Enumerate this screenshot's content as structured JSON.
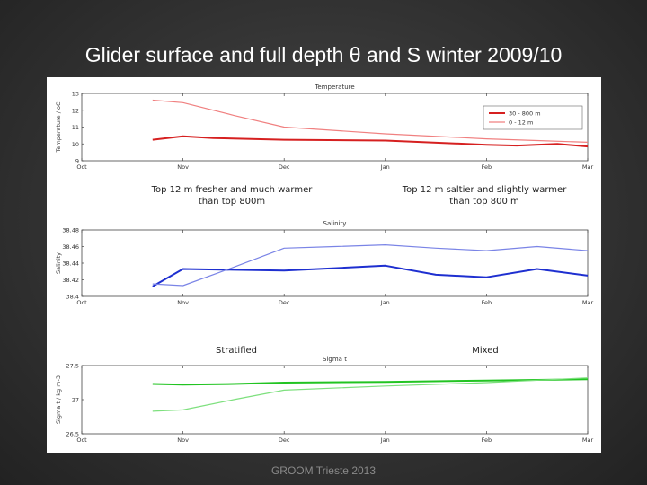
{
  "slide": {
    "title": "Glider surface and full depth θ and S winter 2009/10",
    "footer": "GROOM Trieste 2013"
  },
  "annotations": {
    "top_left": [
      "Top 12 m fresher and much warmer",
      "than top 800m"
    ],
    "top_right": [
      "Top 12 m saltier and slightly warmer",
      "than top 800 m"
    ],
    "mid_left": "Stratified",
    "mid_right": "Mixed"
  },
  "colors": {
    "red_deep": "#d62020",
    "red_surface": "#f08080",
    "blue_deep": "#1e2fd0",
    "blue_surface": "#7a84e6",
    "green_deep": "#22c422",
    "green_surface": "#7ee07e"
  },
  "chart_data": [
    {
      "type": "line",
      "title": "Temperature",
      "xlabel": "",
      "ylabel": "Temperature / oC",
      "x_ticks": [
        "Oct",
        "Nov",
        "Dec",
        "Jan",
        "Feb",
        "Mar"
      ],
      "xlim": [
        0,
        5
      ],
      "ylim": [
        9,
        13
      ],
      "y_ticks": [
        "9",
        "10",
        "11",
        "12",
        "13"
      ],
      "y_tick_values": [
        9,
        10,
        11,
        12,
        13
      ],
      "legend": [
        "30 - 800 m",
        "0 - 12 m"
      ],
      "legend_position": "top-right",
      "series": [
        {
          "name": "30 - 800 m",
          "color": "#d62020",
          "width": 2,
          "x": [
            0.7,
            1.0,
            1.3,
            2.0,
            3.0,
            4.0,
            4.3,
            4.7,
            5.0
          ],
          "y": [
            10.25,
            10.45,
            10.35,
            10.25,
            10.2,
            9.95,
            9.9,
            10.0,
            9.85
          ]
        },
        {
          "name": "0 - 12 m",
          "color": "#f08080",
          "width": 1.2,
          "x": [
            0.7,
            1.0,
            1.5,
            2.0,
            3.0,
            4.0,
            4.5,
            5.0
          ],
          "y": [
            12.6,
            12.45,
            11.7,
            11.0,
            10.6,
            10.3,
            10.2,
            10.1
          ]
        }
      ]
    },
    {
      "type": "line",
      "title": "Salinity",
      "xlabel": "",
      "ylabel": "Salinity",
      "x_ticks": [
        "Oct",
        "Nov",
        "Dec",
        "Jan",
        "Feb",
        "Mar"
      ],
      "xlim": [
        0,
        5
      ],
      "ylim": [
        38.4,
        38.48
      ],
      "y_ticks": [
        "38.4",
        "38.42",
        "38.44",
        "38.46",
        "38.48"
      ],
      "y_tick_values": [
        38.4,
        38.42,
        38.44,
        38.46,
        38.48
      ],
      "series": [
        {
          "name": "",
          "color": "#1e2fd0",
          "width": 2,
          "x": [
            0.7,
            1.0,
            1.5,
            2.0,
            2.5,
            3.0,
            3.5,
            4.0,
            4.5,
            5.0
          ],
          "y": [
            38.412,
            38.433,
            38.432,
            38.431,
            38.434,
            38.437,
            38.426,
            38.423,
            38.433,
            38.425
          ]
        },
        {
          "name": "",
          "color": "#7a84e6",
          "width": 1.2,
          "x": [
            0.7,
            1.0,
            1.5,
            2.0,
            2.5,
            3.0,
            3.5,
            4.0,
            4.5,
            5.0
          ],
          "y": [
            38.415,
            38.413,
            38.435,
            38.458,
            38.46,
            38.462,
            38.458,
            38.455,
            38.46,
            38.455
          ]
        }
      ]
    },
    {
      "type": "line",
      "title": "Sigma t",
      "xlabel": "",
      "ylabel": "Sigma t / kg m-3",
      "x_ticks": [
        "Oct",
        "Nov",
        "Dec",
        "Jan",
        "Feb",
        "Mar"
      ],
      "xlim": [
        0,
        5
      ],
      "ylim": [
        26.5,
        27.5
      ],
      "y_ticks": [
        "26.5",
        "27",
        "27.5"
      ],
      "y_tick_values": [
        26.5,
        27,
        27.5
      ],
      "series": [
        {
          "name": "",
          "color": "#22c422",
          "width": 2,
          "x": [
            0.7,
            1.0,
            1.5,
            2.0,
            3.0,
            4.0,
            5.0
          ],
          "y": [
            27.23,
            27.22,
            27.23,
            27.25,
            27.26,
            27.28,
            27.3
          ]
        },
        {
          "name": "",
          "color": "#7ee07e",
          "width": 1.2,
          "x": [
            0.7,
            1.0,
            1.5,
            2.0,
            3.0,
            4.0,
            5.0
          ],
          "y": [
            26.83,
            26.85,
            27.0,
            27.14,
            27.2,
            27.25,
            27.32
          ]
        }
      ]
    }
  ]
}
